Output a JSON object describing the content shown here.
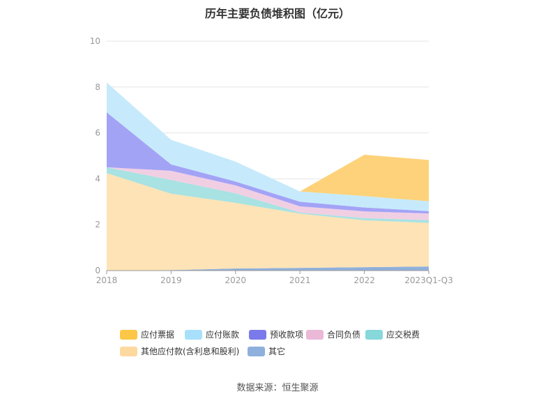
{
  "title": "历年主要负债堆积图（亿元）",
  "source_label": "数据来源：",
  "source_name": "恒生聚源",
  "chart_data": {
    "type": "area",
    "stacked": true,
    "title": "历年主要负债堆积图（亿元）",
    "categories": [
      "2018",
      "2019",
      "2020",
      "2021",
      "2022",
      "2023Q1-Q3"
    ],
    "y_ticks": [
      "0",
      "2",
      "4",
      "6",
      "8",
      "10"
    ],
    "ylim": [
      0,
      10
    ],
    "grid": true,
    "legend_position": "bottom",
    "series": [
      {
        "name": "其它",
        "color": "#8fb0dc",
        "values": [
          0.0,
          0.02,
          0.09,
          0.12,
          0.15,
          0.18
        ]
      },
      {
        "name": "其他应付款(含利息和股利)",
        "color": "#fde3b6",
        "values": [
          4.25,
          3.33,
          2.86,
          2.36,
          2.04,
          1.9
        ]
      },
      {
        "name": "应交税费",
        "color": "#a8e2e2",
        "values": [
          0.25,
          0.6,
          0.42,
          0.05,
          0.1,
          0.12
        ]
      },
      {
        "name": "合同负债",
        "color": "#f1cfe3",
        "values": [
          0.0,
          0.4,
          0.34,
          0.27,
          0.29,
          0.29
        ]
      },
      {
        "name": "预收款项",
        "color": "#a3a3f6",
        "values": [
          2.4,
          0.28,
          0.17,
          0.2,
          0.17,
          0.1
        ]
      },
      {
        "name": "应付账款",
        "color": "#c6eafb",
        "values": [
          1.3,
          1.07,
          0.87,
          0.45,
          0.5,
          0.43
        ]
      },
      {
        "name": "应付票据",
        "color": "#fed27a",
        "values": [
          0.0,
          0.0,
          0.0,
          0.0,
          1.8,
          1.8
        ]
      }
    ],
    "legend": [
      {
        "name": "应付票据",
        "color": "#fcc746"
      },
      {
        "name": "应付账款",
        "color": "#a8e0fb"
      },
      {
        "name": "预收款项",
        "color": "#7a7aeb"
      },
      {
        "name": "合同负债",
        "color": "#ebb8d8"
      },
      {
        "name": "应交税费",
        "color": "#86d8da"
      },
      {
        "name": "其他应付款(含利息和股利)",
        "color": "#fdd9a0"
      },
      {
        "name": "其它",
        "color": "#8fb0dc"
      }
    ]
  }
}
